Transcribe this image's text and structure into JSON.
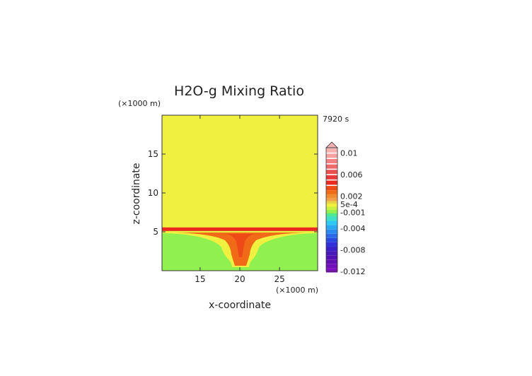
{
  "chart_data": {
    "type": "heatmap",
    "title": "H2O-g Mixing Ratio",
    "time_label": "7920 s",
    "xlabel": "x-coordinate",
    "ylabel": "z-coordinate",
    "x_unit": "(×1000 m)",
    "y_unit": "(×1000 m)",
    "xlim": [
      10.2,
      29.8
    ],
    "ylim": [
      0,
      20
    ],
    "x_ticks": [
      15,
      20,
      25
    ],
    "y_ticks": [
      5,
      10,
      15
    ],
    "x_tick_labels": [
      "15",
      "20",
      "25"
    ],
    "y_tick_labels": [
      "5",
      "10",
      "15"
    ],
    "field": {
      "upper_layer_value": 0.0003,
      "lower_layer_value": -0.0008,
      "interface_z": 5.2,
      "interface_value": 0.004,
      "plume_center_x": 20,
      "plume_value": 0.0025
    },
    "colorbar": {
      "min": -0.012,
      "max": 0.011,
      "tick_values": [
        0.01,
        0.006,
        0.002,
        0.0005,
        -0.001,
        -0.004,
        -0.008,
        -0.012
      ],
      "tick_labels": [
        "0.01",
        "0.006",
        "0.002",
        "5e-4",
        "-0.001",
        "-0.004",
        "-0.008",
        "-0.012"
      ],
      "levels": [
        {
          "value": 0.0105,
          "color": "#f6b0b0"
        },
        {
          "value": 0.0095,
          "color": "#f6a0a0"
        },
        {
          "value": 0.0085,
          "color": "#f28080"
        },
        {
          "value": 0.0075,
          "color": "#ee6a6a"
        },
        {
          "value": 0.0065,
          "color": "#ea5050"
        },
        {
          "value": 0.0055,
          "color": "#e83a3a"
        },
        {
          "value": 0.0045,
          "color": "#ea2a20"
        },
        {
          "value": 0.0035,
          "color": "#ee4a18"
        },
        {
          "value": 0.0027,
          "color": "#f06a18"
        },
        {
          "value": 0.002,
          "color": "#f08a30"
        },
        {
          "value": 0.0013,
          "color": "#f0a048"
        },
        {
          "value": 0.0007,
          "color": "#e8d048"
        },
        {
          "value": 0.0002,
          "color": "#f0f040"
        },
        {
          "value": -0.0004,
          "color": "#c8f040"
        },
        {
          "value": -0.001,
          "color": "#90f050"
        },
        {
          "value": -0.0016,
          "color": "#50e890"
        },
        {
          "value": -0.0022,
          "color": "#40e0c8"
        },
        {
          "value": -0.003,
          "color": "#30c8f0"
        },
        {
          "value": -0.0038,
          "color": "#2aa8f0"
        },
        {
          "value": -0.0046,
          "color": "#2a88f0"
        },
        {
          "value": -0.0054,
          "color": "#2a68e8"
        },
        {
          "value": -0.0062,
          "color": "#2a48e0"
        },
        {
          "value": -0.007,
          "color": "#3030d8"
        },
        {
          "value": -0.0078,
          "color": "#3a20c8"
        },
        {
          "value": -0.0086,
          "color": "#4818b8"
        },
        {
          "value": -0.0094,
          "color": "#5410b0"
        },
        {
          "value": -0.0102,
          "color": "#6010b0"
        },
        {
          "value": -0.011,
          "color": "#7010b8"
        },
        {
          "value": -0.0118,
          "color": "#8010c0"
        }
      ]
    }
  }
}
